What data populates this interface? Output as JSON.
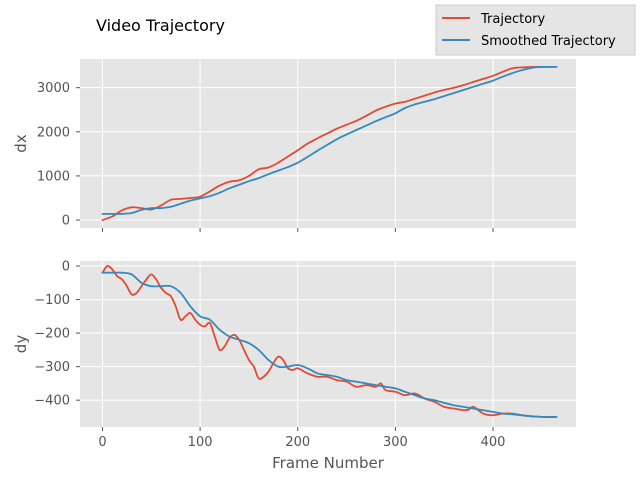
{
  "chart_data": {
    "type": "line",
    "title": "Video Trajectory",
    "xlabel": "Frame Number",
    "xlim": [
      -23,
      485
    ],
    "xticks": [
      0,
      100,
      200,
      300,
      400
    ],
    "legend": {
      "placement": "top-right",
      "entries": [
        "Trajectory",
        "Smoothed Trajectory"
      ]
    },
    "grid": true,
    "colors": {
      "Trajectory": "#E24A33",
      "Smoothed Trajectory": "#348ABD",
      "panel_bg": "#E5E5E5",
      "grid": "#FFFFFF"
    },
    "subplots": [
      {
        "ylabel": "dx",
        "ylim": [
          -180,
          3650
        ],
        "yticks": [
          0,
          1000,
          2000,
          3000
        ],
        "series": [
          {
            "name": "Trajectory",
            "x": [
              0,
              10,
              20,
              30,
              40,
              50,
              60,
              70,
              80,
              90,
              100,
              110,
              120,
              130,
              140,
              150,
              160,
              170,
              180,
              190,
              200,
              210,
              220,
              230,
              240,
              250,
              260,
              270,
              280,
              290,
              300,
              310,
              320,
              330,
              340,
              350,
              360,
              370,
              380,
              390,
              400,
              410,
              420,
              430,
              440,
              450,
              465
            ],
            "y": [
              0,
              80,
              220,
              290,
              270,
              240,
              330,
              460,
              480,
              500,
              530,
              650,
              780,
              870,
              900,
              1000,
              1150,
              1190,
              1300,
              1440,
              1580,
              1730,
              1850,
              1960,
              2070,
              2160,
              2250,
              2360,
              2480,
              2570,
              2640,
              2680,
              2750,
              2820,
              2890,
              2950,
              3000,
              3060,
              3130,
              3200,
              3270,
              3360,
              3440,
              3460,
              3470,
              3470,
              3470
            ]
          },
          {
            "name": "Smoothed Trajectory",
            "x": [
              0,
              10,
              20,
              30,
              40,
              50,
              60,
              70,
              80,
              90,
              100,
              110,
              120,
              130,
              140,
              150,
              160,
              170,
              180,
              190,
              200,
              210,
              220,
              230,
              240,
              250,
              260,
              270,
              280,
              290,
              300,
              310,
              320,
              330,
              340,
              350,
              360,
              370,
              380,
              390,
              400,
              410,
              420,
              430,
              440,
              450,
              465
            ],
            "y": [
              140,
              140,
              140,
              160,
              230,
              270,
              270,
              300,
              370,
              440,
              490,
              540,
              620,
              720,
              800,
              880,
              950,
              1040,
              1120,
              1200,
              1300,
              1430,
              1570,
              1700,
              1830,
              1940,
              2040,
              2140,
              2240,
              2330,
              2420,
              2540,
              2620,
              2680,
              2740,
              2810,
              2880,
              2950,
              3020,
              3090,
              3160,
              3250,
              3330,
              3400,
              3450,
              3470,
              3470
            ]
          }
        ]
      },
      {
        "ylabel": "dy",
        "ylim": [
          -480,
          15
        ],
        "yticks": [
          0,
          -100,
          -200,
          -300,
          -400
        ],
        "series": [
          {
            "name": "Trajectory",
            "x": [
              0,
              5,
              10,
              15,
              20,
              25,
              30,
              35,
              40,
              45,
              50,
              55,
              60,
              65,
              70,
              75,
              80,
              85,
              90,
              95,
              100,
              105,
              110,
              115,
              120,
              125,
              130,
              135,
              140,
              145,
              150,
              155,
              160,
              165,
              170,
              175,
              180,
              185,
              190,
              195,
              200,
              210,
              220,
              230,
              240,
              250,
              260,
              270,
              280,
              285,
              290,
              300,
              310,
              320,
              330,
              340,
              350,
              360,
              370,
              375,
              380,
              390,
              400,
              410,
              420,
              430,
              440,
              450,
              465
            ],
            "y": [
              -20,
              0,
              -10,
              -30,
              -40,
              -60,
              -85,
              -80,
              -60,
              -40,
              -25,
              -40,
              -65,
              -80,
              -90,
              -120,
              -160,
              -150,
              -140,
              -160,
              -175,
              -180,
              -170,
              -210,
              -250,
              -240,
              -215,
              -205,
              -220,
              -250,
              -280,
              -300,
              -335,
              -330,
              -315,
              -290,
              -270,
              -280,
              -305,
              -310,
              -305,
              -320,
              -330,
              -330,
              -340,
              -345,
              -360,
              -355,
              -360,
              -350,
              -370,
              -375,
              -385,
              -380,
              -395,
              -405,
              -420,
              -425,
              -430,
              -428,
              -420,
              -440,
              -445,
              -440,
              -440,
              -445,
              -448,
              -450,
              -450
            ]
          },
          {
            "name": "Smoothed Trajectory",
            "x": [
              0,
              10,
              20,
              30,
              40,
              50,
              60,
              70,
              80,
              90,
              100,
              110,
              120,
              130,
              140,
              150,
              160,
              170,
              180,
              190,
              200,
              210,
              220,
              230,
              240,
              250,
              260,
              270,
              280,
              290,
              300,
              310,
              320,
              330,
              340,
              350,
              360,
              370,
              380,
              390,
              400,
              410,
              420,
              430,
              440,
              450,
              465
            ],
            "y": [
              -20,
              -20,
              -20,
              -25,
              -50,
              -60,
              -60,
              -60,
              -80,
              -120,
              -150,
              -160,
              -190,
              -210,
              -220,
              -230,
              -250,
              -280,
              -300,
              -300,
              -295,
              -305,
              -320,
              -325,
              -330,
              -340,
              -345,
              -350,
              -355,
              -360,
              -365,
              -375,
              -385,
              -395,
              -400,
              -408,
              -415,
              -420,
              -425,
              -430,
              -435,
              -440,
              -442,
              -445,
              -448,
              -450,
              -450
            ]
          }
        ]
      }
    ]
  }
}
